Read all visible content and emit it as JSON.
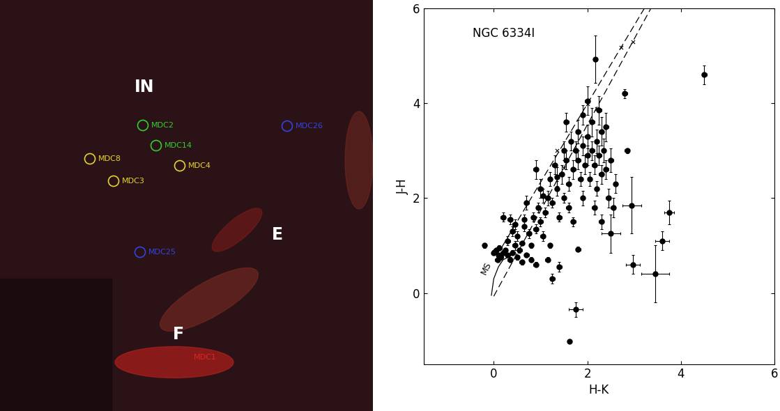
{
  "image_panel": {
    "regions": [
      {
        "label": "IN"
      },
      {
        "label": "E"
      },
      {
        "label": "F"
      }
    ],
    "markers": [
      {
        "label": "MDC2",
        "color": "#33cc33",
        "circle": true
      },
      {
        "label": "MDC14",
        "color": "#33cc33",
        "circle": true
      },
      {
        "label": "MDC8",
        "color": "#e6d22e",
        "circle": true
      },
      {
        "label": "MDC4",
        "color": "#e6d22e",
        "circle": true
      },
      {
        "label": "MDC3",
        "color": "#e6d22e",
        "circle": true
      },
      {
        "label": "MDC26",
        "color": "#3344dd",
        "circle": true
      },
      {
        "label": "MDC25",
        "color": "#3344dd",
        "circle": true
      },
      {
        "label": "MDC1",
        "color": "#dd2222",
        "circle": false
      }
    ]
  },
  "chart_data": {
    "type": "scatter",
    "annotation": "NGC 6334I",
    "x_label": "H-K",
    "y_label": "J-H",
    "xlim": [
      -1.5,
      6
    ],
    "ylim": [
      -1.5,
      6
    ],
    "xticks": [
      0,
      2,
      4,
      6
    ],
    "yticks": [
      0,
      2,
      4,
      6
    ],
    "color": "#000000",
    "marker": "circle",
    "points": {
      "x": [
        0.0,
        0.05,
        0.1,
        0.15,
        0.2,
        0.08,
        0.25,
        0.3,
        0.12,
        0.35,
        0.4,
        0.45,
        0.5,
        0.55,
        0.6,
        0.3,
        0.4,
        0.35,
        0.5,
        0.6,
        0.65,
        0.7,
        0.75,
        0.8,
        0.85,
        0.9,
        0.95,
        1.0,
        1.0,
        0.9,
        1.05,
        1.1,
        1.15,
        1.2,
        1.25,
        1.3,
        1.35,
        1.4,
        1.45,
        1.5,
        1.5,
        1.55,
        1.6,
        1.6,
        1.65,
        1.7,
        1.7,
        1.75,
        1.8,
        1.8,
        1.85,
        1.9,
        1.9,
        1.95,
        2.0,
        2.0,
        2.05,
        2.1,
        2.1,
        2.15,
        2.2,
        2.2,
        2.25,
        2.3,
        2.3,
        2.35,
        2.4,
        2.4,
        2.45,
        2.5,
        2.55,
        2.6,
        0.2,
        0.7,
        0.45,
        1.2,
        0.9,
        0.8,
        2.17,
        4.5,
        2.8,
        1.75,
        1.62,
        3.45,
        2.97,
        3.6,
        3.75,
        2.95,
        2.5,
        2.85,
        1.25,
        1.4,
        1.8,
        -0.2,
        1.55,
        1.9,
        1.15,
        2.3,
        2.15,
        0.65,
        1.05,
        1.35,
        2.0,
        2.25
      ],
      "y": [
        0.85,
        0.9,
        0.8,
        0.75,
        0.85,
        0.7,
        0.9,
        0.8,
        0.95,
        0.7,
        0.85,
        1.0,
        0.75,
        0.9,
        0.65,
        1.1,
        1.3,
        1.55,
        1.2,
        1.05,
        1.4,
        0.8,
        1.25,
        1.0,
        1.6,
        1.35,
        1.8,
        1.5,
        2.2,
        2.6,
        1.2,
        1.7,
        2.0,
        2.4,
        1.9,
        2.7,
        2.2,
        1.6,
        2.5,
        3.0,
        2.0,
        2.8,
        2.3,
        1.8,
        3.2,
        2.6,
        1.5,
        3.0,
        2.8,
        3.4,
        2.4,
        3.1,
        2.0,
        2.7,
        3.3,
        2.9,
        2.4,
        3.0,
        3.6,
        2.7,
        3.2,
        2.2,
        2.9,
        3.4,
        2.5,
        3.0,
        2.6,
        3.5,
        2.0,
        2.8,
        1.8,
        2.3,
        1.6,
        1.9,
        1.45,
        1.0,
        0.6,
        0.7,
        4.93,
        4.6,
        4.2,
        -0.35,
        -1.02,
        0.4,
        0.6,
        1.1,
        1.7,
        1.85,
        1.25,
        3.0,
        0.3,
        0.55,
        0.92,
        1.0,
        3.6,
        3.75,
        0.7,
        1.5,
        1.8,
        1.55,
        2.05,
        2.45,
        4.05,
        3.85
      ],
      "xerr": [
        0.05,
        0.05,
        0.05,
        0.05,
        0.05,
        0.05,
        0.05,
        0.05,
        0.05,
        0.05,
        0.05,
        0.05,
        0.05,
        0.05,
        0.05,
        0.05,
        0.05,
        0.05,
        0.05,
        0.05,
        0.05,
        0.05,
        0.05,
        0.05,
        0.05,
        0.05,
        0.05,
        0.05,
        0.05,
        0.05,
        0.05,
        0.05,
        0.05,
        0.05,
        0.05,
        0.05,
        0.05,
        0.05,
        0.05,
        0.05,
        0.05,
        0.05,
        0.05,
        0.05,
        0.05,
        0.05,
        0.05,
        0.05,
        0.05,
        0.05,
        0.05,
        0.05,
        0.05,
        0.05,
        0.05,
        0.05,
        0.05,
        0.05,
        0.05,
        0.05,
        0.05,
        0.05,
        0.05,
        0.05,
        0.05,
        0.05,
        0.05,
        0.05,
        0.05,
        0.05,
        0.05,
        0.05,
        0.05,
        0.05,
        0.05,
        0.05,
        0.05,
        0.05,
        0.05,
        0.05,
        0.05,
        0.15,
        0.05,
        0.3,
        0.15,
        0.15,
        0.1,
        0.2,
        0.2,
        0.05,
        0.05,
        0.05,
        0.05,
        0.05,
        0.05,
        0.05,
        0.05,
        0.05,
        0.05,
        0.05,
        0.05,
        0.05,
        0.05,
        0.05
      ],
      "yerr": [
        0.05,
        0.05,
        0.05,
        0.05,
        0.05,
        0.05,
        0.05,
        0.05,
        0.05,
        0.05,
        0.05,
        0.1,
        0.05,
        0.05,
        0.05,
        0.1,
        0.1,
        0.1,
        0.1,
        0.05,
        0.1,
        0.05,
        0.1,
        0.05,
        0.1,
        0.1,
        0.1,
        0.1,
        0.2,
        0.2,
        0.1,
        0.1,
        0.15,
        0.15,
        0.1,
        0.2,
        0.15,
        0.1,
        0.2,
        0.2,
        0.1,
        0.2,
        0.15,
        0.1,
        0.2,
        0.2,
        0.1,
        0.2,
        0.2,
        0.25,
        0.15,
        0.2,
        0.15,
        0.2,
        0.25,
        0.2,
        0.15,
        0.2,
        0.3,
        0.2,
        0.25,
        0.15,
        0.2,
        0.3,
        0.2,
        0.25,
        0.2,
        0.3,
        0.2,
        0.25,
        0.2,
        0.2,
        0.1,
        0.15,
        0.1,
        0.05,
        0.05,
        0.05,
        0.5,
        0.2,
        0.1,
        0.15,
        0.05,
        0.6,
        0.2,
        0.2,
        0.25,
        0.6,
        0.4,
        0.05,
        0.1,
        0.1,
        0.05,
        0.05,
        0.2,
        0.2,
        0.05,
        0.15,
        0.15,
        0.1,
        0.15,
        0.2,
        0.3,
        0.3
      ]
    },
    "series": [
      {
        "type": "line",
        "line_style": "dashed",
        "color": "#000000",
        "x": [
          0.17,
          3.22
        ],
        "values": [
          0.96,
          6.0
        ]
      },
      {
        "type": "line",
        "line_style": "dashed",
        "color": "#000000",
        "x": [
          0.0,
          3.36
        ],
        "values": [
          -0.07,
          6.0
        ]
      },
      {
        "type": "line",
        "line_style": "solid",
        "color": "#000000",
        "name": "MS",
        "x": [
          -0.05,
          0.0,
          0.1,
          0.2,
          0.3
        ],
        "values": [
          -0.05,
          0.3,
          0.55,
          0.7,
          0.75
        ]
      },
      {
        "type": "scatter",
        "marker": "x",
        "color": "#000000",
        "x": [
          1.35,
          2.0,
          2.72,
          1.5,
          2.2,
          2.98
        ],
        "values": [
          3.0,
          3.98,
          5.17,
          2.63,
          3.89,
          5.29
        ]
      }
    ]
  }
}
